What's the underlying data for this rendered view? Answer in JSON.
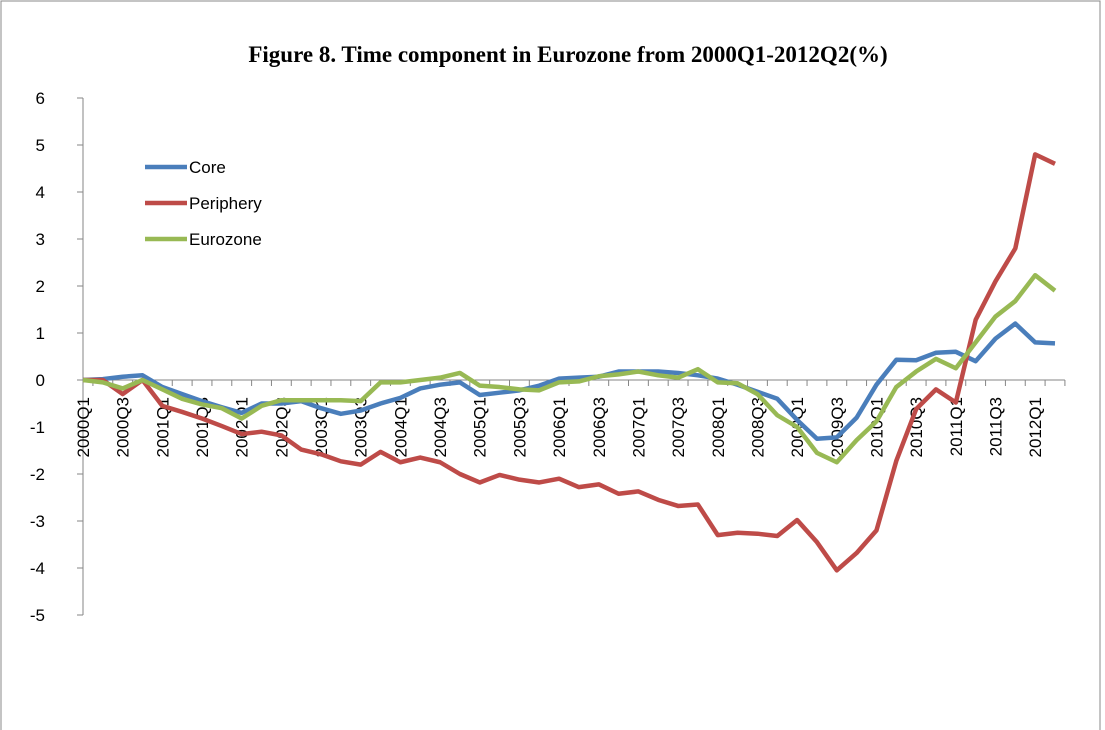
{
  "chart_data": {
    "type": "line",
    "title": "Figure 8. Time component in Eurozone from 2000Q1-2012Q2(%)",
    "categories": [
      "2000Q1",
      null,
      "2000Q3",
      null,
      "2001Q1",
      null,
      "2001Q3",
      null,
      "2002Q1",
      null,
      "2002Q3",
      null,
      "2003Q1",
      null,
      "2003Q3",
      null,
      "2004Q1",
      null,
      "2004Q3",
      null,
      "2005Q1",
      null,
      "2005Q3",
      null,
      "2006Q1",
      null,
      "2006Q3",
      null,
      "2007Q1",
      null,
      "2007Q3",
      null,
      "2008Q1",
      null,
      "2008Q3",
      null,
      "2009Q1",
      null,
      "2009Q3",
      null,
      "2010Q1",
      null,
      "2010Q3",
      null,
      "2011Q1",
      null,
      "2011Q3",
      null,
      "2012Q1",
      null
    ],
    "series": [
      {
        "name": "Core",
        "color": "#4a7ebb",
        "values": [
          0,
          0.02,
          0.07,
          0.1,
          -0.15,
          -0.3,
          -0.45,
          -0.58,
          -0.7,
          -0.5,
          -0.5,
          -0.45,
          -0.6,
          -0.72,
          -0.65,
          -0.5,
          -0.38,
          -0.18,
          -0.1,
          -0.05,
          -0.32,
          -0.27,
          -0.22,
          -0.12,
          0.03,
          0.05,
          0.07,
          0.18,
          0.18,
          0.18,
          0.15,
          0.1,
          0.03,
          -0.1,
          -0.25,
          -0.4,
          -0.85,
          -1.25,
          -1.22,
          -0.8,
          -0.1,
          0.43,
          0.42,
          0.58,
          0.6,
          0.4,
          0.88,
          1.2,
          0.8,
          0.78
        ]
      },
      {
        "name": "Periphery",
        "color": "#be4b48",
        "values": [
          0,
          0,
          -0.3,
          0,
          -0.55,
          -0.68,
          -0.82,
          -0.98,
          -1.15,
          -1.1,
          -1.18,
          -1.48,
          -1.58,
          -1.73,
          -1.8,
          -1.53,
          -1.75,
          -1.65,
          -1.75,
          -2.0,
          -2.18,
          -2.02,
          -2.12,
          -2.18,
          -2.1,
          -2.28,
          -2.22,
          -2.42,
          -2.37,
          -2.55,
          -2.68,
          -2.65,
          -3.3,
          -3.25,
          -3.27,
          -3.32,
          -2.98,
          -3.45,
          -4.05,
          -3.68,
          -3.2,
          -1.72,
          -0.62,
          -0.2,
          -0.48,
          1.28,
          2.1,
          2.8,
          4.8,
          4.6
        ]
      },
      {
        "name": "Eurozone",
        "color": "#98b954",
        "values": [
          0,
          -0.05,
          -0.18,
          0,
          -0.2,
          -0.4,
          -0.52,
          -0.6,
          -0.82,
          -0.55,
          -0.43,
          -0.43,
          -0.43,
          -0.43,
          -0.45,
          -0.05,
          -0.05,
          0,
          0.05,
          0.15,
          -0.12,
          -0.15,
          -0.2,
          -0.22,
          -0.05,
          -0.03,
          0.08,
          0.12,
          0.18,
          0.1,
          0.05,
          0.23,
          -0.05,
          -0.07,
          -0.3,
          -0.75,
          -1.0,
          -1.55,
          -1.75,
          -1.28,
          -0.88,
          -0.15,
          0.18,
          0.45,
          0.25,
          0.8,
          1.35,
          1.68,
          2.23,
          1.9
        ]
      }
    ],
    "ylim": [
      -5,
      6
    ],
    "yticks": [
      -5,
      -4,
      -3,
      -2,
      -1,
      0,
      1,
      2,
      3,
      4,
      5,
      6
    ],
    "legend": "upper-left"
  }
}
